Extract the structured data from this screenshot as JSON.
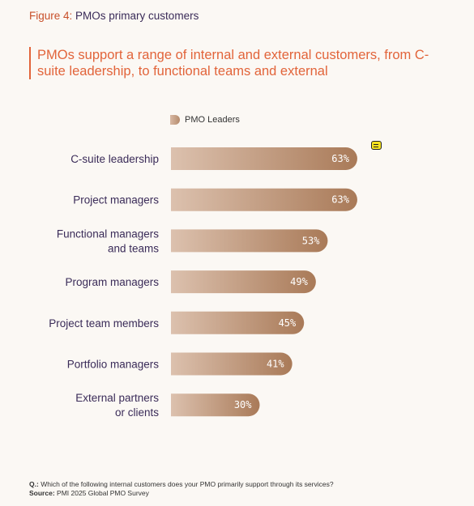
{
  "figure": {
    "label": "Figure 4:",
    "title": "PMOs primary customers"
  },
  "headline": "PMOs support a range of internal and external customers, from C-suite leadership, to functional teams and external",
  "legend": {
    "label": "PMO Leaders"
  },
  "comment_icon": "comment-icon",
  "chart_data": {
    "type": "bar",
    "orientation": "horizontal",
    "categories": [
      [
        "C-suite leadership"
      ],
      [
        "Project managers"
      ],
      [
        "Functional managers",
        "and teams"
      ],
      [
        "Program managers"
      ],
      [
        "Project team members"
      ],
      [
        "Portfolio managers"
      ],
      [
        "External partners",
        "or clients"
      ]
    ],
    "series": [
      {
        "name": "PMO Leaders",
        "values": [
          63,
          63,
          53,
          49,
          45,
          41,
          30
        ]
      }
    ],
    "value_suffix": "%",
    "xlim": [
      0,
      100
    ],
    "colors": {
      "bar_start": "#dcc1ae",
      "bar_end": "#a97a58"
    }
  },
  "footer": {
    "question_label": "Q.:",
    "question_text": "Which of the following internal customers does your PMO primarily support through its services?",
    "source_label": "Source:",
    "source_text": "PMI 2025 Global PMO Survey"
  }
}
